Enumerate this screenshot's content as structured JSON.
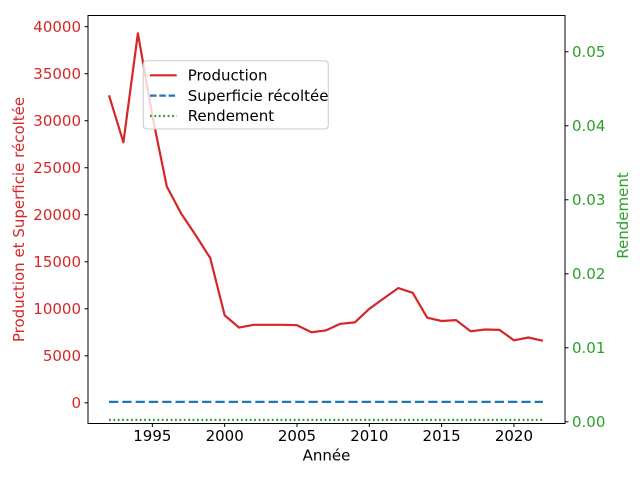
{
  "figure": {
    "background": "#ffffff",
    "text_color": "#000000"
  },
  "chart_data": {
    "type": "line",
    "title": "",
    "xlabel": "Année",
    "ylabel_left": "Production et Superficie récoltée",
    "ylabel_right": "Rendement",
    "ylabel_left_color": "#d62728",
    "ylabel_right_color": "#2ca02c",
    "x": [
      1992,
      1993,
      1994,
      1995,
      1996,
      1997,
      1998,
      1999,
      2000,
      2001,
      2002,
      2003,
      2004,
      2005,
      2006,
      2007,
      2008,
      2009,
      2010,
      2011,
      2012,
      2013,
      2014,
      2015,
      2016,
      2017,
      2018,
      2019,
      2020,
      2021,
      2022
    ],
    "series": [
      {
        "name": "Production",
        "axis": "left",
        "color": "#d62728",
        "style": "solid",
        "values": [
          32700,
          27700,
          39300,
          30500,
          23000,
          20100,
          17800,
          15400,
          9300,
          8000,
          8300,
          8300,
          8300,
          8250,
          7500,
          7700,
          8400,
          8550,
          10000,
          11100,
          12200,
          11700,
          9050,
          8700,
          8800,
          7600,
          7800,
          7750,
          6650,
          6950,
          6600
        ]
      },
      {
        "name": "Superficie récoltée",
        "axis": "left",
        "color": "#1f77b4",
        "style": "dashed",
        "values": [
          100,
          100,
          100,
          100,
          100,
          100,
          100,
          100,
          100,
          100,
          100,
          100,
          100,
          100,
          100,
          100,
          100,
          100,
          100,
          100,
          100,
          100,
          100,
          100,
          100,
          100,
          100,
          100,
          100,
          100,
          100
        ]
      },
      {
        "name": "Rendement",
        "axis": "right",
        "color": "#2ca02c",
        "style": "dotted",
        "values": [
          0.00025,
          0.00025,
          0.00025,
          0.00025,
          0.00025,
          0.00025,
          0.00025,
          0.00025,
          0.00025,
          0.00025,
          0.00025,
          0.00025,
          0.00025,
          0.00025,
          0.00025,
          0.00025,
          0.00025,
          0.00025,
          0.00025,
          0.00025,
          0.00025,
          0.00025,
          0.00025,
          0.00025,
          0.00025,
          0.00025,
          0.00025,
          0.00025,
          0.00025,
          0.00025,
          0.00025
        ]
      }
    ],
    "xticks": [
      1995,
      2000,
      2005,
      2010,
      2015,
      2020
    ],
    "yticks_left": [
      0,
      5000,
      10000,
      15000,
      20000,
      25000,
      30000,
      35000,
      40000
    ],
    "yticks_right": [
      0.0,
      0.01,
      0.02,
      0.03,
      0.04,
      0.05
    ],
    "xlim": [
      1990.55,
      2023.53
    ],
    "ylim_left": [
      -2200,
      41190
    ],
    "ylim_right": [
      -0.00023,
      0.0549
    ],
    "grid": false,
    "legend": {
      "location": "upper left",
      "entries": [
        "Production",
        "Superficie récoltée",
        "Rendement"
      ]
    }
  }
}
